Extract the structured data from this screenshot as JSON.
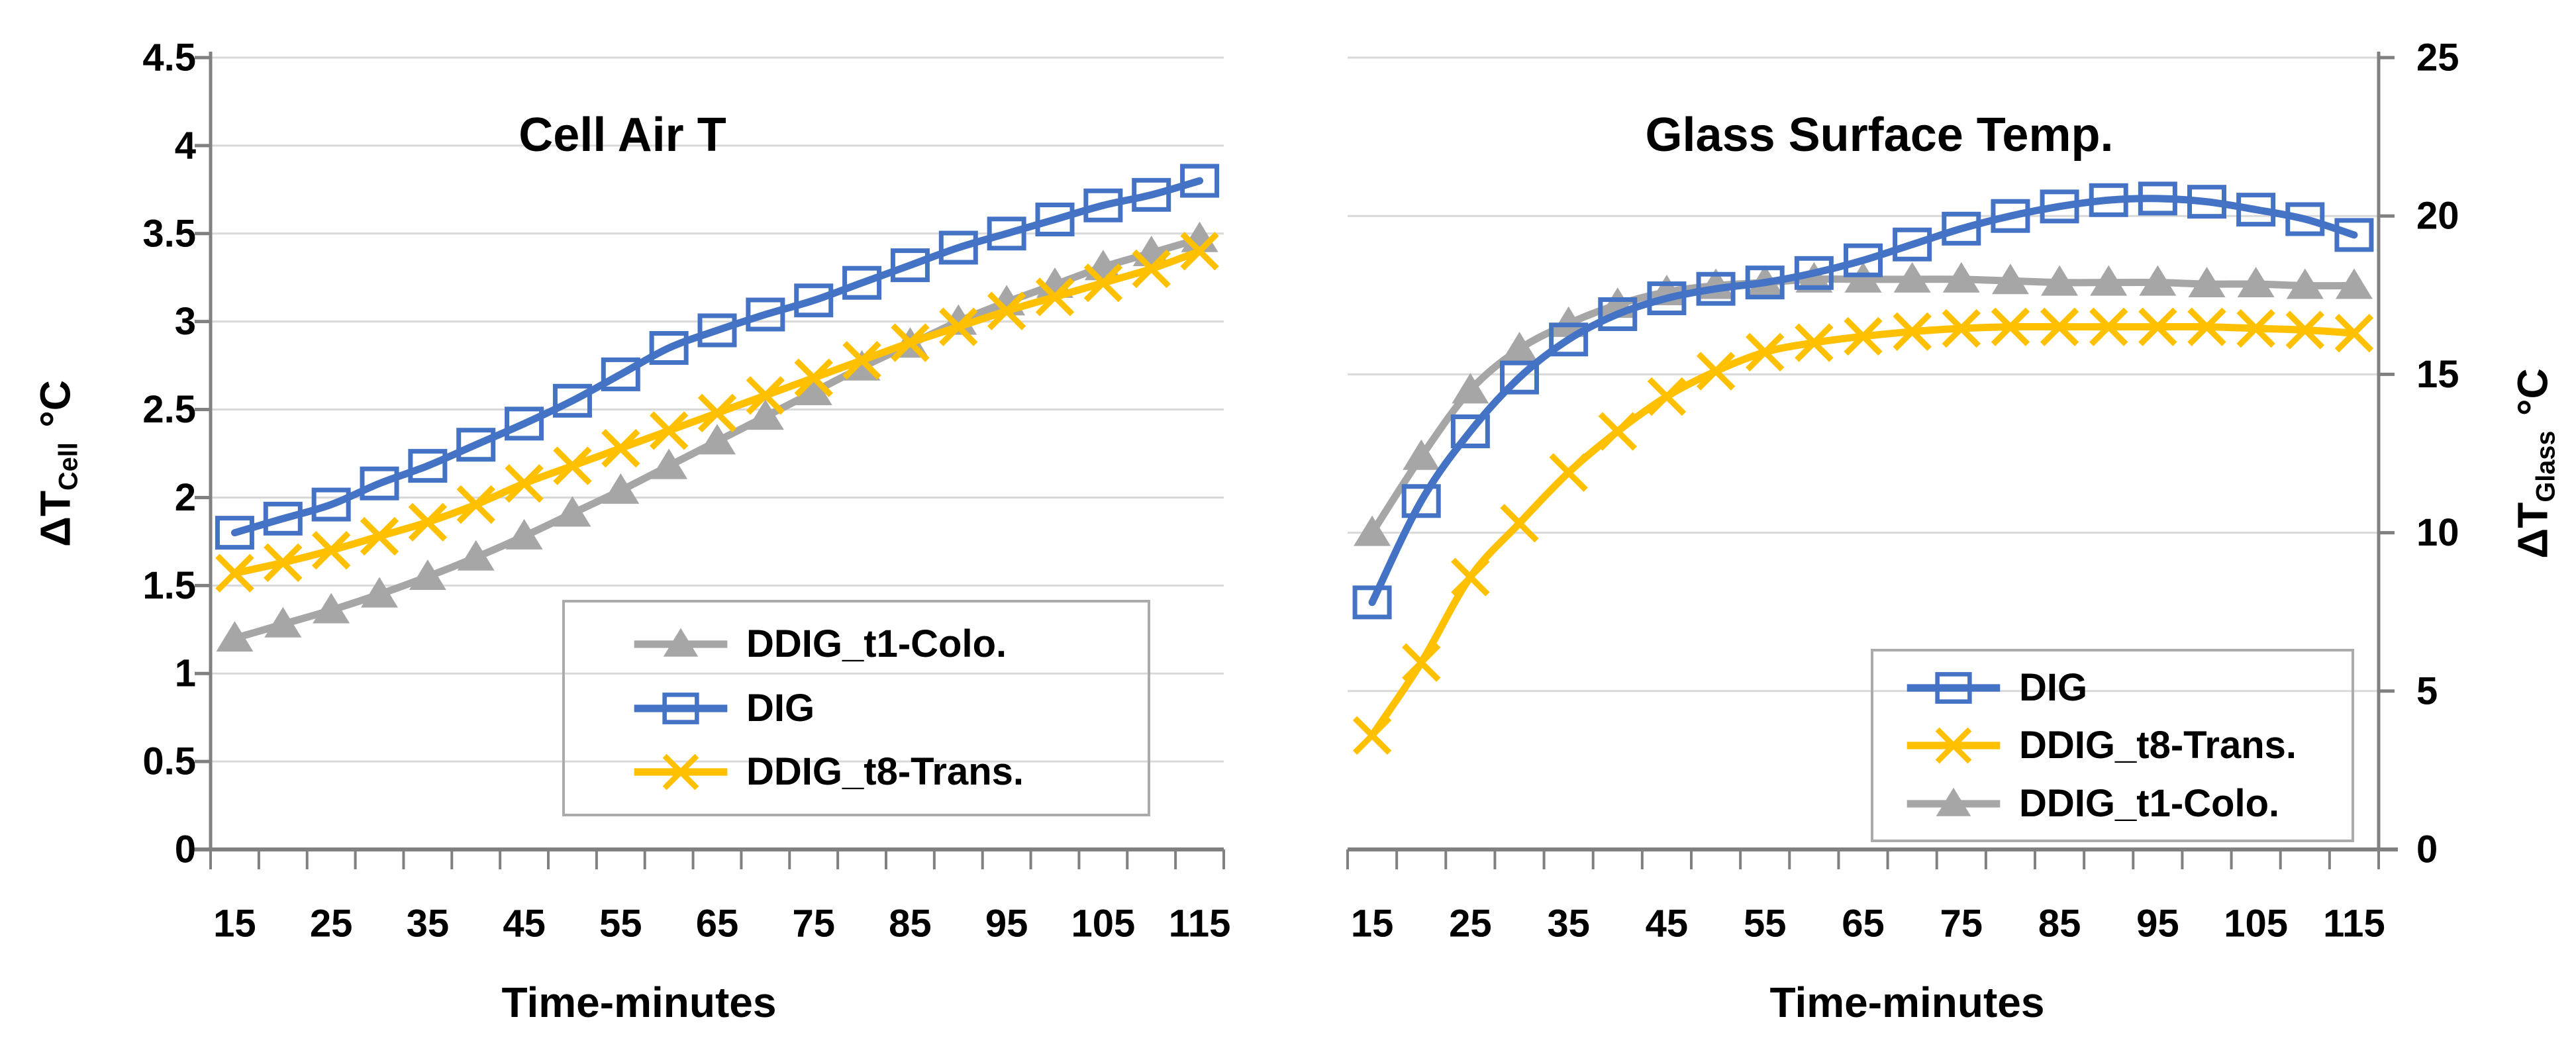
{
  "page": {
    "background": "#FFFFFF"
  },
  "colors": {
    "grid": "#D9D9D9",
    "axis": "#808080",
    "text": "#000000",
    "blue": "#4472C4",
    "yellow": "#FFC000",
    "gray": "#A6A6A6"
  },
  "chart_data": [
    {
      "type": "line",
      "title": "Cell Air T",
      "xlabel": "Time-minutes",
      "ylabel": "ΔT_Cell °C",
      "ylabel_parts": {
        "main": "ΔT",
        "sub": "Cell",
        "unit": "°C"
      },
      "x": [
        15,
        20,
        25,
        30,
        35,
        40,
        45,
        50,
        55,
        60,
        65,
        70,
        75,
        80,
        85,
        90,
        95,
        100,
        105,
        110,
        115
      ],
      "x_tick_labels": [
        "15",
        "25",
        "35",
        "45",
        "55",
        "65",
        "75",
        "85",
        "95",
        "105",
        "115"
      ],
      "ylim": [
        0,
        4.5
      ],
      "y_tick_values": [
        0,
        0.5,
        1,
        1.5,
        2,
        2.5,
        3,
        3.5,
        4,
        4.5
      ],
      "y_tick_labels": [
        "0",
        "0.5",
        "1",
        "1.5",
        "2",
        "2.5",
        "3",
        "3.5",
        "4",
        "4.5"
      ],
      "y_axis_side": "left",
      "grid": true,
      "legend": {
        "position": "inside-bottom-right",
        "order": [
          0,
          1,
          2
        ]
      },
      "series": [
        {
          "name": "DDIG_t1-Colo.",
          "color": "#A6A6A6",
          "marker": "triangle",
          "values": [
            1.2,
            1.28,
            1.36,
            1.45,
            1.55,
            1.66,
            1.78,
            1.91,
            2.04,
            2.18,
            2.32,
            2.46,
            2.6,
            2.74,
            2.87,
            3.0,
            3.11,
            3.21,
            3.31,
            3.39,
            3.47
          ]
        },
        {
          "name": "DIG",
          "color": "#4472C4",
          "marker": "square",
          "values": [
            1.8,
            1.88,
            1.96,
            2.08,
            2.18,
            2.3,
            2.42,
            2.55,
            2.7,
            2.85,
            2.95,
            3.04,
            3.12,
            3.22,
            3.32,
            3.42,
            3.5,
            3.58,
            3.66,
            3.72,
            3.8
          ]
        },
        {
          "name": "DDIG_t8-Trans.",
          "color": "#FFC000",
          "marker": "x",
          "values": [
            1.57,
            1.63,
            1.7,
            1.78,
            1.86,
            1.96,
            2.08,
            2.18,
            2.28,
            2.38,
            2.48,
            2.58,
            2.68,
            2.78,
            2.88,
            2.97,
            3.06,
            3.14,
            3.22,
            3.3,
            3.4
          ]
        }
      ]
    },
    {
      "type": "line",
      "title": "Glass Surface Temp.",
      "xlabel": "Time-minutes",
      "ylabel": "ΔT_Glass °C",
      "ylabel_parts": {
        "main": "ΔT",
        "sub": "Glass",
        "unit": "°C"
      },
      "x": [
        15,
        20,
        25,
        30,
        35,
        40,
        45,
        50,
        55,
        60,
        65,
        70,
        75,
        80,
        85,
        90,
        95,
        100,
        105,
        110,
        115
      ],
      "x_tick_labels": [
        "15",
        "25",
        "35",
        "45",
        "55",
        "65",
        "75",
        "85",
        "95",
        "105",
        "115"
      ],
      "ylim": [
        0,
        25
      ],
      "y_tick_values": [
        0,
        5,
        10,
        15,
        20,
        25
      ],
      "y_tick_labels": [
        "0",
        "5",
        "10",
        "15",
        "20",
        "25"
      ],
      "y_axis_side": "right",
      "grid": true,
      "legend": {
        "position": "inside-bottom-right",
        "order": [
          2,
          1,
          0
        ]
      },
      "series": [
        {
          "name": "DDIG_t1-Colo.",
          "color": "#A6A6A6",
          "marker": "triangle",
          "values": [
            10.0,
            12.4,
            14.5,
            15.8,
            16.6,
            17.2,
            17.6,
            17.8,
            17.9,
            18.0,
            18.0,
            18.0,
            18.0,
            17.95,
            17.9,
            17.9,
            17.9,
            17.85,
            17.85,
            17.8,
            17.8
          ]
        },
        {
          "name": "DDIG_t8-Trans.",
          "color": "#FFC000",
          "marker": "x",
          "values": [
            3.6,
            5.9,
            8.6,
            10.3,
            11.9,
            13.2,
            14.3,
            15.1,
            15.7,
            16.0,
            16.2,
            16.35,
            16.45,
            16.5,
            16.5,
            16.5,
            16.5,
            16.5,
            16.45,
            16.4,
            16.3
          ]
        },
        {
          "name": "DIG",
          "color": "#4472C4",
          "marker": "square",
          "values": [
            7.8,
            11.0,
            13.2,
            14.9,
            16.1,
            16.9,
            17.4,
            17.7,
            17.9,
            18.2,
            18.6,
            19.1,
            19.6,
            20.0,
            20.3,
            20.5,
            20.55,
            20.45,
            20.2,
            19.9,
            19.4
          ]
        }
      ]
    }
  ]
}
